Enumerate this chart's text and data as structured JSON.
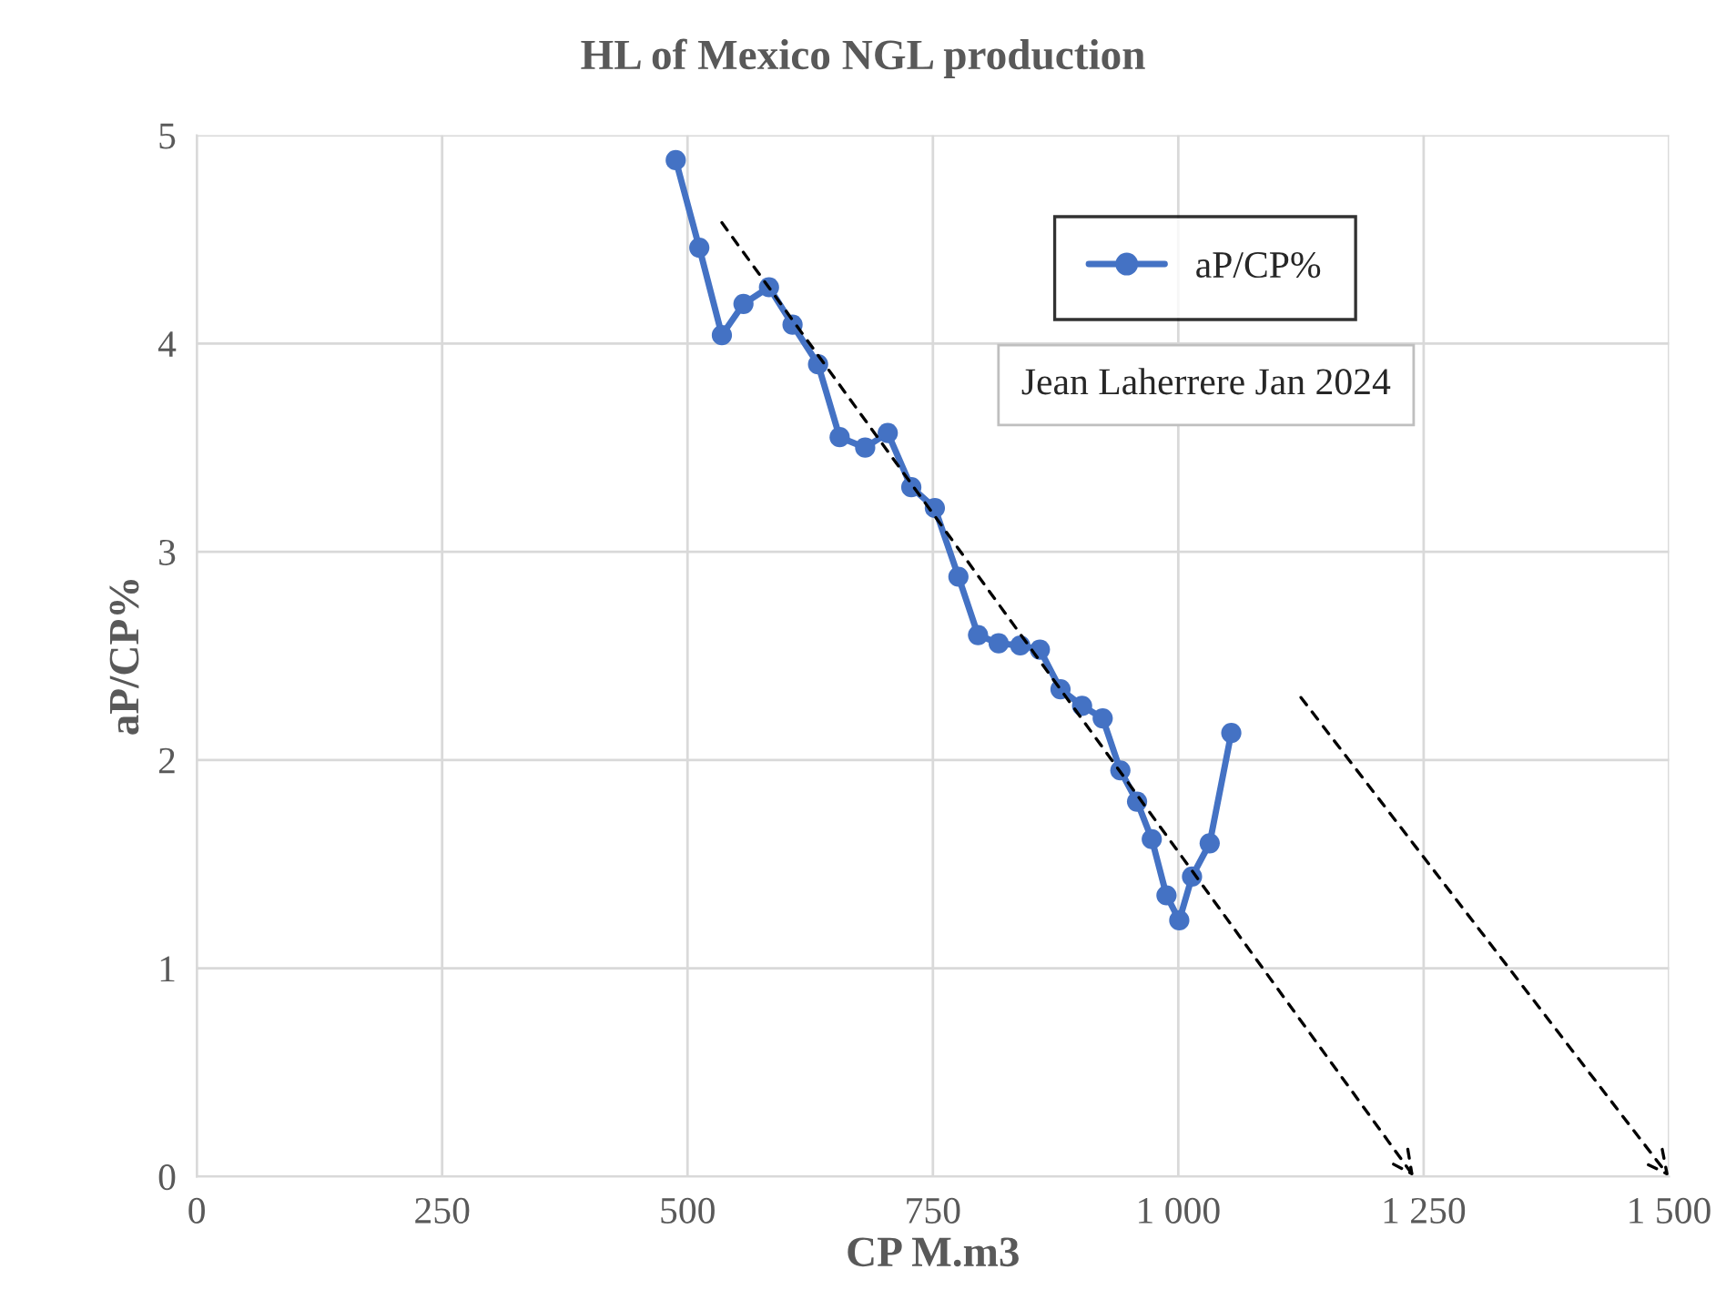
{
  "chart_data": {
    "type": "line",
    "title": "HL of Mexico NGL production",
    "xlabel": "CP M.m3",
    "ylabel": "aP/CP%",
    "series": [
      {
        "name": "aP/CP%",
        "color": "#4472c4",
        "marker": "circle",
        "line_style": "solid",
        "x": [
          488,
          512,
          535,
          557,
          583,
          607,
          633,
          655,
          681,
          704,
          728,
          752,
          776,
          796,
          817,
          839,
          859,
          880,
          902,
          923,
          941,
          958,
          973,
          988,
          1001,
          1014,
          1032,
          1054
        ],
        "values": [
          4.88,
          4.46,
          4.04,
          4.19,
          4.27,
          4.09,
          3.9,
          3.55,
          3.5,
          3.57,
          3.31,
          3.21,
          2.88,
          2.6,
          2.56,
          2.55,
          2.53,
          2.34,
          2.26,
          2.2,
          1.95,
          1.8,
          1.62,
          1.35,
          1.23,
          1.44,
          1.6,
          2.13
        ]
      },
      {
        "type": "line",
        "color": "#000000",
        "marker": "none",
        "line_style": "dashed",
        "x": [
          535,
          1240
        ],
        "values": [
          4.58,
          0
        ]
      },
      {
        "type": "line",
        "color": "#000000",
        "marker": "none",
        "line_style": "dashed",
        "x": [
          1125,
          1500
        ],
        "values": [
          2.3,
          0
        ]
      }
    ],
    "xlim": [
      0,
      1500
    ],
    "xticks": [
      0,
      250,
      500,
      750,
      {
        "value": 1000,
        "label": "1 000"
      },
      {
        "value": 1250,
        "label": "1 250"
      },
      {
        "value": 1500,
        "label": "1 500"
      }
    ],
    "ylim": [
      0,
      5
    ],
    "yticks": [
      0,
      1,
      2,
      3,
      4,
      5
    ],
    "grid": true,
    "legend": "top right",
    "annotations": [
      "Jean Laherrere Jan 2024"
    ]
  }
}
